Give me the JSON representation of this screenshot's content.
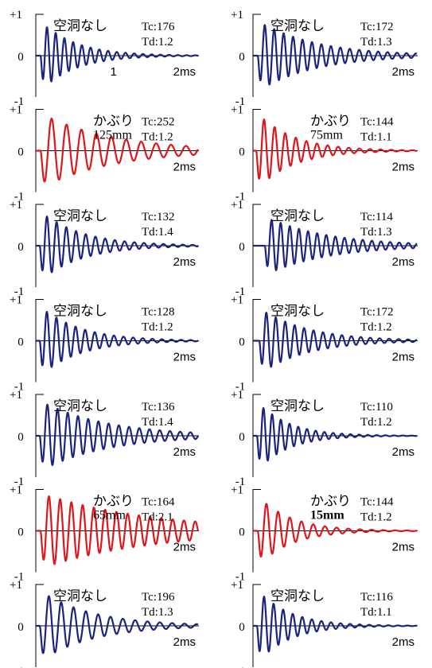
{
  "figure": {
    "colors": {
      "normal": "#1a237e",
      "anomaly": "#e0151b",
      "axis": "#000000"
    }
  },
  "chart_data": [
    {
      "type": "line",
      "status": "normal",
      "label": "空洞なし",
      "tc_label": "Tc:176",
      "td_label": "Td:1.2",
      "tc": 176,
      "td": 1.2,
      "x_unit_label": "2ms",
      "x_mid_label": "1",
      "xlim": [
        0,
        2.1
      ],
      "ylim": [
        -1,
        1
      ],
      "y_ticks": [
        "+1",
        "0",
        "-1"
      ],
      "signal": {
        "f": 8.9,
        "damp": 2.3,
        "amp": 0.9,
        "onset": 0.06
      }
    },
    {
      "type": "line",
      "status": "normal",
      "label": "空洞なし",
      "tc_label": "Tc:172",
      "td_label": "Td:1.3",
      "tc": 172,
      "td": 1.3,
      "x_unit_label": "2ms",
      "xlim": [
        0,
        2.1
      ],
      "ylim": [
        -1,
        1
      ],
      "y_ticks": [
        "+1",
        "0",
        "-1"
      ],
      "signal": {
        "f": 8.3,
        "damp": 1.4,
        "amp": 0.9,
        "onset": 0.06
      }
    },
    {
      "type": "line",
      "status": "anomaly",
      "label": "かぶり",
      "sublabel": "125mm",
      "tc_label": "Tc:252",
      "td_label": "Td:1.2",
      "tc": 252,
      "td": 1.2,
      "x_unit_label": "2ms",
      "xlim": [
        0,
        2.1
      ],
      "ylim": [
        -1,
        1
      ],
      "y_ticks": [
        "+1",
        "0",
        "-1"
      ],
      "signal": {
        "f": 5.2,
        "damp": 1.1,
        "amp": 0.95,
        "onset": 0.06
      }
    },
    {
      "type": "line",
      "status": "anomaly",
      "label": "かぶり",
      "sublabel": "75mm",
      "tc_label": "Tc:144",
      "td_label": "Td:1.1",
      "tc": 144,
      "td": 1.1,
      "x_unit_label": "2ms",
      "xlim": [
        0,
        2.1
      ],
      "ylim": [
        -1,
        1
      ],
      "y_ticks": [
        "+1",
        "0",
        "-1"
      ],
      "signal": {
        "f": 7.4,
        "damp": 2.2,
        "amp": 1.0,
        "onset": 0.04
      }
    },
    {
      "type": "line",
      "status": "normal",
      "label": "空洞なし",
      "tc_label": "Tc:132",
      "td_label": "Td:1.4",
      "tc": 132,
      "td": 1.4,
      "x_unit_label": "2ms",
      "xlim": [
        0,
        2.1
      ],
      "ylim": [
        -1,
        1
      ],
      "y_ticks": [
        "+1",
        "0",
        "-1"
      ],
      "signal": {
        "f": 8.0,
        "damp": 1.9,
        "amp": 0.9,
        "onset": 0.05
      }
    },
    {
      "type": "line",
      "status": "normal",
      "label": "空洞なし",
      "tc_label": "Tc:114",
      "td_label": "Td:1.3",
      "tc": 114,
      "td": 1.3,
      "x_unit_label": "2ms",
      "xlim": [
        0,
        2.1
      ],
      "ylim": [
        -1,
        1
      ],
      "y_ticks": [
        "+1",
        "0",
        "-1"
      ],
      "signal": {
        "f": 8.6,
        "damp": 1.3,
        "amp": 0.75,
        "onset": 0.15
      }
    },
    {
      "type": "line",
      "status": "normal",
      "label": "空洞なし",
      "tc_label": "Tc:128",
      "td_label": "Td:1.2",
      "tc": 128,
      "td": 1.2,
      "x_unit_label": "2ms",
      "xlim": [
        0,
        2.1
      ],
      "ylim": [
        -1,
        1
      ],
      "y_ticks": [
        "+1",
        "0",
        "-1"
      ],
      "signal": {
        "f": 8.1,
        "damp": 2.0,
        "amp": 0.9,
        "onset": 0.05
      }
    },
    {
      "type": "line",
      "status": "normal",
      "label": "空洞なし",
      "tc_label": "Tc:172",
      "td_label": "Td:1.2",
      "tc": 172,
      "td": 1.2,
      "x_unit_label": "2ms",
      "xlim": [
        0,
        2.1
      ],
      "ylim": [
        -1,
        1
      ],
      "y_ticks": [
        "+1",
        "0",
        "-1"
      ],
      "signal": {
        "f": 8.3,
        "damp": 1.7,
        "amp": 0.85,
        "onset": 0.08
      }
    },
    {
      "type": "line",
      "status": "normal",
      "label": "空洞なし",
      "tc_label": "Tc:136",
      "td_label": "Td:1.4",
      "tc": 136,
      "td": 1.4,
      "x_unit_label": "2ms",
      "xlim": [
        0,
        2.1
      ],
      "ylim": [
        -1,
        1
      ],
      "y_ticks": [
        "+1",
        "0",
        "-1"
      ],
      "signal": {
        "f": 7.6,
        "damp": 1.2,
        "amp": 0.9,
        "onset": 0.05
      }
    },
    {
      "type": "line",
      "status": "normal",
      "label": "空洞なし",
      "tc_label": "Tc:110",
      "td_label": "Td:1.2",
      "tc": 110,
      "td": 1.2,
      "x_unit_label": "2ms",
      "xlim": [
        0,
        2.1
      ],
      "ylim": [
        -1,
        1
      ],
      "y_ticks": [
        "+1",
        "0",
        "-1"
      ],
      "signal": {
        "f": 9.0,
        "damp": 2.6,
        "amp": 0.9,
        "onset": 0.05
      }
    },
    {
      "type": "line",
      "status": "anomaly",
      "label": "かぶり",
      "sublabel": "65mm",
      "tc_label": "Tc:164",
      "td_label": "Td:2.1",
      "tc": 164,
      "td": 2.1,
      "x_unit_label": "2ms",
      "xlim": [
        0,
        2.1
      ],
      "ylim": [
        -1,
        1
      ],
      "y_ticks": [
        "+1",
        "0",
        "-1"
      ],
      "signal": {
        "f": 6.9,
        "damp": 0.7,
        "amp": 0.95,
        "onset": 0.06
      }
    },
    {
      "type": "line",
      "status": "anomaly",
      "label": "かぶり",
      "sublabel": "15mm",
      "tc_label": "Tc:144",
      "td_label": "Td:1.2",
      "tc": 144,
      "td": 1.2,
      "x_unit_label": "2ms",
      "xlim": [
        0,
        2.1
      ],
      "ylim": [
        -1,
        1
      ],
      "y_ticks": [
        "+1",
        "0",
        "-1"
      ],
      "signal": {
        "f": 6.7,
        "damp": 2.4,
        "amp": 0.9,
        "onset": 0.06
      }
    },
    {
      "type": "line",
      "status": "normal",
      "label": "空洞なし",
      "tc_label": "Tc:196",
      "td_label": "Td:1.3",
      "tc": 196,
      "td": 1.3,
      "x_unit_label": "2ms",
      "xlim": [
        0,
        2.1
      ],
      "ylim": [
        -1,
        1
      ],
      "y_ticks": [
        "+1",
        "0",
        "-1"
      ],
      "signal": {
        "f": 6.3,
        "damp": 1.5,
        "amp": 0.9,
        "onset": 0.05
      }
    },
    {
      "type": "line",
      "status": "normal",
      "label": "空洞なし",
      "tc_label": "Tc:116",
      "td_label": "Td:1.1",
      "tc": 116,
      "td": 1.1,
      "x_unit_label": "2ms",
      "xlim": [
        0,
        2.1
      ],
      "ylim": [
        -1,
        1
      ],
      "y_ticks": [
        "+1",
        "0",
        "-1"
      ],
      "signal": {
        "f": 8.2,
        "damp": 2.5,
        "amp": 0.95,
        "onset": 0.05
      }
    }
  ]
}
